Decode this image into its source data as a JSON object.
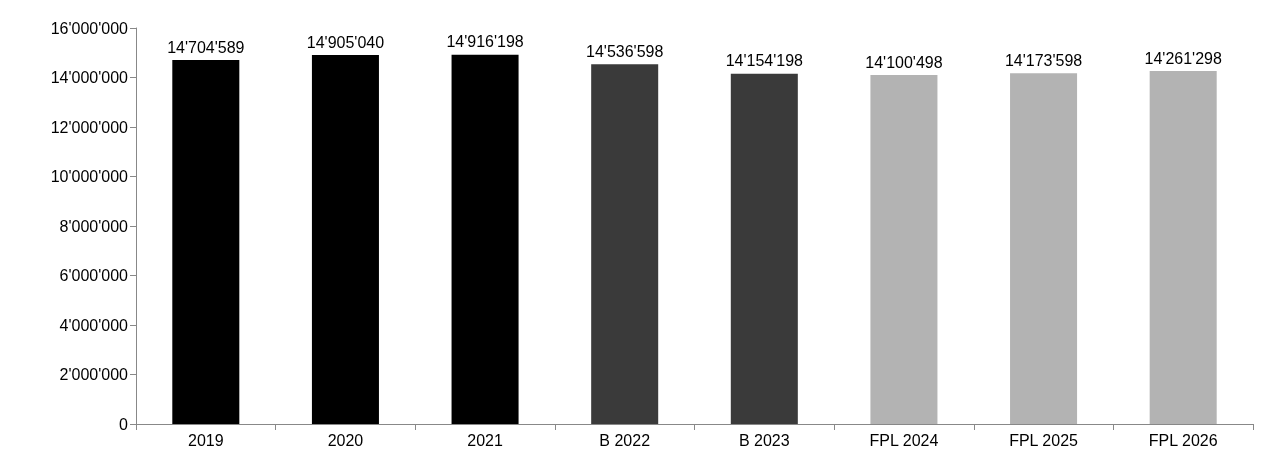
{
  "chart_data": {
    "type": "bar",
    "categories": [
      "2019",
      "2020",
      "2021",
      "B 2022",
      "B 2023",
      "FPL 2024",
      "FPL 2025",
      "FPL 2026"
    ],
    "values": [
      14704589,
      14905040,
      14916198,
      14536598,
      14154198,
      14100498,
      14173598,
      14261298
    ],
    "colors": [
      "#000000",
      "#000000",
      "#000000",
      "#3a3a3a",
      "#3a3a3a",
      "#b3b3b3",
      "#b3b3b3",
      "#b3b3b3"
    ],
    "value_labels": [
      "14'704'589",
      "14'905'040",
      "14'916'198",
      "14'536'598",
      "14'154'198",
      "14'100'498",
      "14'173'598",
      "14'261'298"
    ],
    "ylim": [
      0,
      16000000
    ],
    "yticks": [
      {
        "value": 0,
        "label": "0"
      },
      {
        "value": 2000000,
        "label": "2'000'000"
      },
      {
        "value": 4000000,
        "label": "4'000'000"
      },
      {
        "value": 6000000,
        "label": "6'000'000"
      },
      {
        "value": 8000000,
        "label": "8'000'000"
      },
      {
        "value": 10000000,
        "label": "10'000'000"
      },
      {
        "value": 12000000,
        "label": "12'000'000"
      },
      {
        "value": 14000000,
        "label": "14'000'000"
      },
      {
        "value": 16000000,
        "label": "16'000'000"
      }
    ],
    "grid": false
  }
}
